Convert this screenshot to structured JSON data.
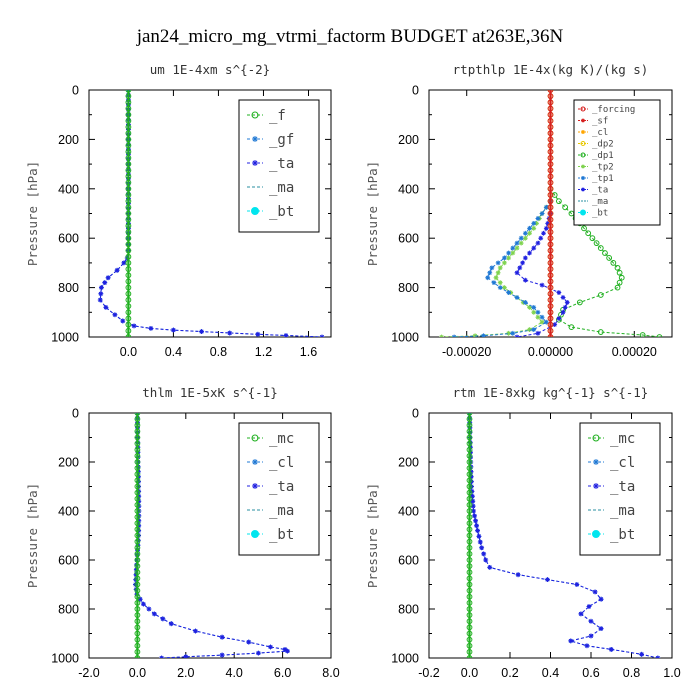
{
  "figure": {
    "title": "jan24_micro_mg_vtrmi_factorm  BUDGET at263E,36N"
  },
  "colors": {
    "forcing": "#d62020",
    "sf": "#d62020",
    "cl_orange": "#ffa500",
    "dp2": "#e8c800",
    "green": "#20b020",
    "tp2": "#7fd34f",
    "tp1": "#1f78d4",
    "ta": "#2020e0",
    "ma": "#2a8fa0",
    "bt": "#00e5ee",
    "zero_line": "#20b020"
  },
  "chart_data": [
    {
      "id": "um",
      "type": "line",
      "title": "um   1E-4xm s^{-2}",
      "ylabel": "Pressure [hPa]",
      "xlim": [
        -0.35,
        1.8
      ],
      "ylim": [
        1000,
        0
      ],
      "xticks": [
        0.0,
        0.4,
        0.8,
        1.2,
        1.6
      ],
      "xtick_labels": [
        "0.0",
        "0.4",
        "0.8",
        "1.2",
        "1.6"
      ],
      "yticks": [
        0,
        200,
        400,
        600,
        800,
        1000
      ],
      "legend": {
        "position": "upper-right",
        "small": false,
        "entries": [
          "_f",
          "_gf",
          "_ta",
          "_ma",
          "_bt"
        ]
      },
      "series": [
        {
          "name": "_gf",
          "color_key": "tp1",
          "marker": "star",
          "x": [
            0,
            0,
            0,
            0,
            0,
            -0.01,
            -0.04,
            -0.1,
            -0.18,
            -0.24,
            -0.25,
            -0.2,
            -0.12,
            -0.05,
            0.05,
            0.2,
            0.4,
            0.65,
            0.9,
            1.15,
            1.4,
            1.72
          ],
          "y": [
            0,
            200,
            400,
            600,
            650,
            680,
            700,
            730,
            760,
            800,
            850,
            880,
            910,
            935,
            955,
            965,
            972,
            978,
            984,
            989,
            994,
            1000
          ]
        },
        {
          "name": "_ta",
          "color_key": "ta",
          "marker": "star",
          "x": [
            0,
            0,
            0,
            0,
            0,
            -0.01,
            -0.04,
            -0.1,
            -0.18,
            -0.24,
            -0.25,
            -0.2,
            -0.12,
            -0.05,
            0.05,
            0.2,
            0.4,
            0.65,
            0.9,
            1.15,
            1.4,
            1.72
          ],
          "y": [
            0,
            200,
            400,
            600,
            650,
            680,
            700,
            730,
            760,
            800,
            850,
            880,
            910,
            935,
            955,
            965,
            972,
            978,
            984,
            989,
            994,
            1000
          ]
        },
        {
          "name": "_f",
          "color_key": "green",
          "marker": "circle",
          "x": [
            0,
            0
          ],
          "y": [
            0,
            1000
          ]
        }
      ]
    },
    {
      "id": "rtpthlp",
      "type": "line",
      "title": "rtpthlp  1E-4x(kg K)/(kg s)",
      "ylabel": "Pressure [hPa]",
      "xlim": [
        -0.00029,
        0.00029
      ],
      "ylim": [
        1000,
        0
      ],
      "xticks": [
        -0.0002,
        0.0,
        0.0002
      ],
      "xtick_labels": [
        "-0.00020",
        "0.00000",
        "0.00020"
      ],
      "yticks": [
        0,
        200,
        400,
        600,
        800,
        1000
      ],
      "legend": {
        "position": "upper-right",
        "small": true,
        "entries": [
          "_forcing",
          "_sf",
          "_cl",
          "_dp2",
          "_dp1",
          "_tp2",
          "_tp1",
          "_ta",
          "_ma",
          "_bt"
        ]
      },
      "series": [
        {
          "name": "_dp1",
          "color_key": "green",
          "marker": "circle",
          "x": [
            0,
            2e-05,
            5e-05,
            8e-05,
            0.00011,
            0.00014,
            0.00016,
            0.00017,
            0.00016,
            0.00012,
            7e-05,
            3e-05,
            2e-05,
            5e-05,
            0.00012,
            0.00022,
            0.00026
          ],
          "y": [
            400,
            450,
            500,
            560,
            620,
            680,
            720,
            760,
            800,
            830,
            860,
            890,
            930,
            960,
            980,
            992,
            1000
          ]
        },
        {
          "name": "_tp2",
          "color_key": "tp2",
          "marker": "star",
          "x": [
            0,
            -2e-05,
            -4e-05,
            -7e-05,
            -0.0001,
            -0.00012,
            -0.00013,
            -0.00011,
            -8e-05,
            -5e-05,
            -2e-05,
            -5e-05,
            -0.0001,
            -0.00018,
            -0.00026
          ],
          "y": [
            450,
            500,
            560,
            620,
            680,
            720,
            760,
            800,
            840,
            880,
            940,
            970,
            985,
            995,
            1000
          ]
        },
        {
          "name": "_tp1",
          "color_key": "tp1",
          "marker": "star",
          "x": [
            0,
            -2e-05,
            -5e-05,
            -8e-05,
            -0.00011,
            -0.00014,
            -0.00015,
            -0.00012,
            -8e-05,
            -4e-05,
            -1e-05,
            -4e-05,
            -9e-05,
            -0.00016,
            -0.00023
          ],
          "y": [
            450,
            500,
            560,
            620,
            680,
            720,
            760,
            800,
            840,
            880,
            940,
            970,
            985,
            995,
            1000
          ]
        },
        {
          "name": "_ta",
          "color_key": "ta",
          "marker": "star",
          "x": [
            0,
            -1e-05,
            -3e-05,
            -6e-05,
            -8e-05,
            -6e-05,
            -2e-05,
            2e-05,
            4e-05,
            3e-05,
            1e-05,
            -3e-05,
            -8e-05
          ],
          "y": [
            500,
            560,
            620,
            680,
            740,
            770,
            790,
            820,
            860,
            900,
            950,
            985,
            1000
          ]
        },
        {
          "name": "_dp2",
          "color_key": "dp2",
          "marker": "circle",
          "x": [
            0,
            0
          ],
          "y": [
            0,
            1000
          ]
        },
        {
          "name": "_forcing",
          "color_key": "forcing",
          "marker": "circle",
          "x": [
            0,
            0
          ],
          "y": [
            0,
            1000
          ]
        }
      ]
    },
    {
      "id": "thlm",
      "type": "line",
      "title": "thlm  1E-5xK s^{-1}",
      "ylabel": "Pressure [hPa]",
      "xlim": [
        -2.0,
        8.0
      ],
      "ylim": [
        1000,
        0
      ],
      "xticks": [
        -2.0,
        0.0,
        2.0,
        4.0,
        6.0,
        8.0
      ],
      "xtick_labels": [
        "-2.0",
        "0.0",
        "2.0",
        "4.0",
        "6.0",
        "8.0"
      ],
      "yticks": [
        0,
        200,
        400,
        600,
        800,
        1000
      ],
      "legend": {
        "position": "upper-right",
        "small": false,
        "entries": [
          "_mc",
          "_cl",
          "_ta",
          "_ma",
          "_bt"
        ]
      },
      "series": [
        {
          "name": "_cl",
          "color_key": "tp1",
          "marker": "star",
          "x": [
            0,
            0.01,
            0.03,
            0.05,
            0.06,
            0.05,
            -0.02,
            -0.08,
            -0.02,
            0.25,
            0.7,
            1.4,
            2.4,
            3.5,
            4.6,
            5.5,
            6.1,
            6.2,
            5.0,
            3.5,
            2.0,
            1.0
          ],
          "y": [
            0,
            100,
            200,
            300,
            400,
            500,
            600,
            700,
            740,
            780,
            820,
            860,
            890,
            915,
            935,
            955,
            965,
            972,
            980,
            988,
            995,
            1000
          ]
        },
        {
          "name": "_ta",
          "color_key": "ta",
          "marker": "star",
          "x": [
            0,
            0.01,
            0.03,
            0.05,
            0.06,
            0.05,
            -0.02,
            -0.08,
            -0.02,
            0.25,
            0.7,
            1.4,
            2.4,
            3.5,
            4.6,
            5.5,
            6.1,
            6.2,
            5.0,
            3.5,
            2.0,
            1.0
          ],
          "y": [
            0,
            100,
            200,
            300,
            400,
            500,
            600,
            700,
            740,
            780,
            820,
            860,
            890,
            915,
            935,
            955,
            965,
            972,
            980,
            988,
            995,
            1000
          ]
        },
        {
          "name": "_mc",
          "color_key": "green",
          "marker": "circle",
          "x": [
            0,
            0
          ],
          "y": [
            0,
            1000
          ]
        }
      ]
    },
    {
      "id": "rtm",
      "type": "line",
      "title": "rtm  1E-8xkg kg^{-1} s^{-1}",
      "ylabel": "Pressure [hPa]",
      "xlim": [
        -0.2,
        1.0
      ],
      "ylim": [
        1000,
        0
      ],
      "xticks": [
        -0.2,
        0.0,
        0.2,
        0.4,
        0.6,
        0.8,
        1.0
      ],
      "xtick_labels": [
        "-0.2",
        "0.0",
        "0.2",
        "0.4",
        "0.6",
        "0.8",
        "1.0"
      ],
      "yticks": [
        0,
        200,
        400,
        600,
        800,
        1000
      ],
      "legend": {
        "position": "upper-right",
        "small": false,
        "entries": [
          "_mc",
          "_cl",
          "_ta",
          "_ma",
          "_bt"
        ]
      },
      "series": [
        {
          "name": "_cl",
          "color_key": "tp1",
          "marker": "star",
          "x": [
            0,
            0.003,
            0.006,
            0.01,
            0.02,
            0.04,
            0.06,
            0.08,
            0.1,
            0.24,
            0.53,
            0.62,
            0.65,
            0.59,
            0.55,
            0.6,
            0.65,
            0.6,
            0.5,
            0.58,
            0.7,
            0.85,
            0.93
          ],
          "y": [
            0,
            100,
            200,
            300,
            400,
            480,
            550,
            600,
            630,
            660,
            700,
            730,
            760,
            790,
            820,
            850,
            880,
            910,
            930,
            950,
            965,
            985,
            1000
          ]
        },
        {
          "name": "_ta",
          "color_key": "ta",
          "marker": "star",
          "x": [
            0,
            0.003,
            0.006,
            0.01,
            0.02,
            0.04,
            0.06,
            0.08,
            0.1,
            0.24,
            0.53,
            0.62,
            0.65,
            0.59,
            0.55,
            0.6,
            0.65,
            0.6,
            0.5,
            0.58,
            0.7,
            0.85,
            0.93
          ],
          "y": [
            0,
            100,
            200,
            300,
            400,
            480,
            550,
            600,
            630,
            660,
            700,
            730,
            760,
            790,
            820,
            850,
            880,
            910,
            930,
            950,
            965,
            985,
            1000
          ]
        },
        {
          "name": "_mc",
          "color_key": "green",
          "marker": "circle",
          "x": [
            0,
            0
          ],
          "y": [
            0,
            1000
          ]
        }
      ]
    }
  ]
}
